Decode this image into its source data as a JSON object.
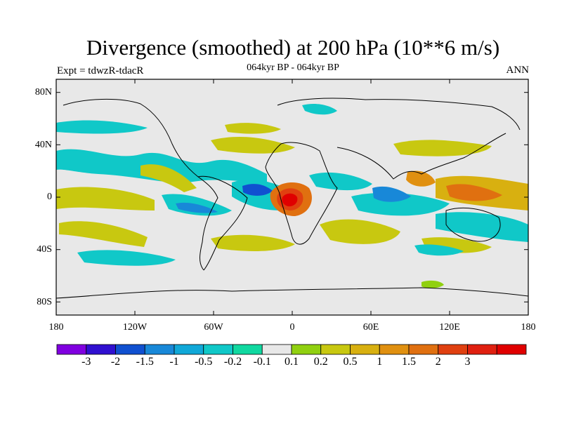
{
  "title": "Divergence (smoothed) at 200 hPa (10**6 m/s)",
  "experiment": "Expt = tdwzR-tdacR",
  "period": "064kyr BP - 064kyr BP",
  "season": "ANN",
  "map": {
    "background": "#e8e8e8",
    "lat_ticks": [
      "80N",
      "40N",
      "0",
      "40S",
      "80S"
    ],
    "lon_ticks": [
      "180",
      "120W",
      "60W",
      "0",
      "60E",
      "120E",
      "180"
    ]
  },
  "colorbar": {
    "colors": [
      "#8000e0",
      "#3010d0",
      "#1050d0",
      "#1888d8",
      "#10a8d8",
      "#10c8c8",
      "#10d8a0",
      "#e8e8e8",
      "#90d010",
      "#c8c810",
      "#d8b010",
      "#e09010",
      "#e07010",
      "#e04010",
      "#e02010",
      "#e00000"
    ],
    "labels": [
      "-3",
      "-2",
      "-1.5",
      "-1",
      "-0.5",
      "-0.2",
      "-0.1",
      "0.1",
      "0.2",
      "0.5",
      "1",
      "1.5",
      "2",
      "3"
    ]
  }
}
